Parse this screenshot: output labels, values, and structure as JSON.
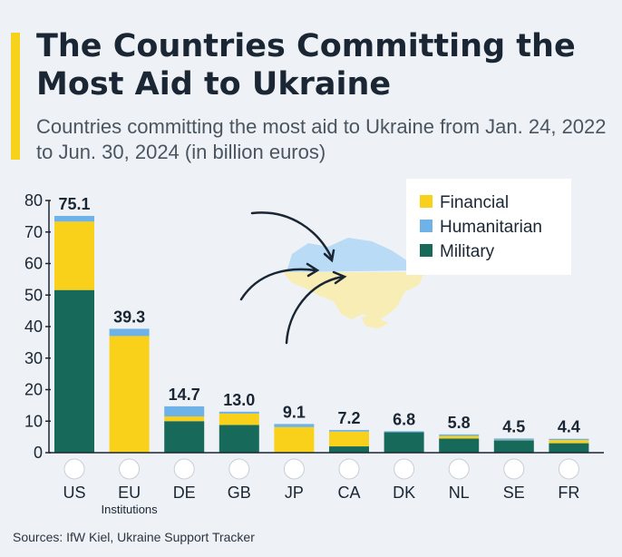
{
  "header": {
    "title": "The Countries Committing the Most Aid to Ukraine",
    "subtitle": "Countries committing the most aid to Ukraine from Jan. 24, 2022 to Jun. 30, 2024 (in billion euros)"
  },
  "footer": {
    "source": "Sources: IfW Kiel, Ukraine Support Tracker"
  },
  "colors": {
    "financial": "#f9d11a",
    "humanitarian": "#6eb2e8",
    "military": "#17695a",
    "axis": "#1a2633"
  },
  "chart_data": {
    "type": "bar",
    "stacked": true,
    "categories": [
      "US",
      "EU Institutions",
      "DE",
      "GB",
      "JP",
      "CA",
      "DK",
      "NL",
      "SE",
      "FR"
    ],
    "flag_icons": [
      "us-flag-icon",
      "eu-flag-icon",
      "germany-flag-icon",
      "uk-flag-icon",
      "japan-flag-icon",
      "canada-flag-icon",
      "denmark-flag-icon",
      "netherlands-flag-icon",
      "sweden-flag-icon",
      "france-flag-icon"
    ],
    "series": [
      {
        "name": "Military",
        "values": [
          51.6,
          0,
          10.0,
          8.8,
          0,
          2.0,
          6.5,
          4.5,
          3.9,
          3.0
        ]
      },
      {
        "name": "Financial",
        "values": [
          21.7,
          37.0,
          1.5,
          3.6,
          8.1,
          4.7,
          0,
          0.8,
          0.1,
          1.0
        ]
      },
      {
        "name": "Humanitarian",
        "values": [
          1.8,
          2.3,
          3.2,
          0.6,
          1.0,
          0.5,
          0.3,
          0.5,
          0.5,
          0.4
        ]
      }
    ],
    "totals": [
      "75.1",
      "39.3",
      "14.7",
      "13.0",
      "9.1",
      "7.2",
      "6.8",
      "5.8",
      "4.5",
      "4.4"
    ],
    "legend": [
      "Financial",
      "Humanitarian",
      "Military"
    ],
    "legend_position": "top-right",
    "ylim": [
      0,
      80
    ],
    "yticks": [
      "0",
      "10",
      "20",
      "30",
      "40",
      "50",
      "60",
      "70",
      "80"
    ],
    "xlabel": "",
    "ylabel": "",
    "grid": false
  }
}
